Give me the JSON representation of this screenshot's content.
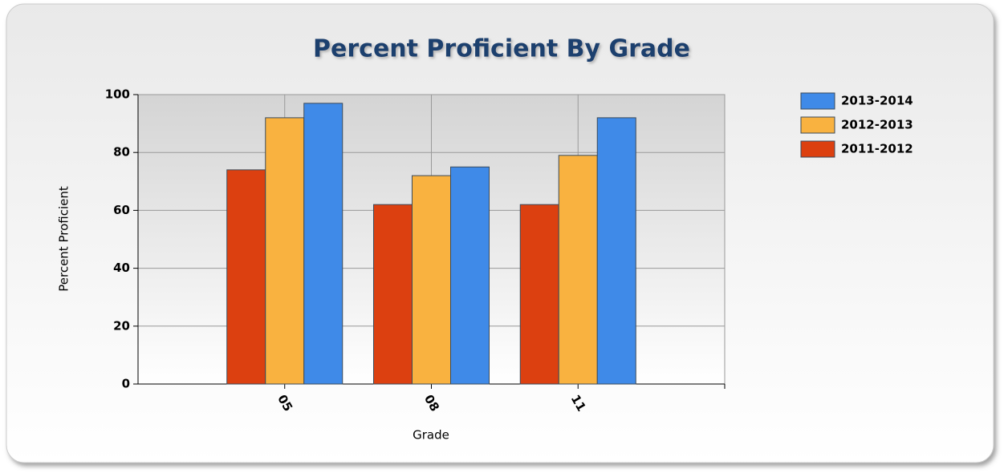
{
  "chart_data": {
    "type": "bar",
    "title": "Percent Proficient By Grade",
    "x_label": "Grade",
    "y_label": "Percent Proficient",
    "categories": [
      "05",
      "08",
      "11"
    ],
    "series": [
      {
        "name": "2011-2012",
        "color": "#dc4010",
        "values": [
          74,
          62,
          62
        ]
      },
      {
        "name": "2012-2013",
        "color": "#f9b240",
        "values": [
          92,
          72,
          79
        ]
      },
      {
        "name": "2013-2014",
        "color": "#3f8ae8",
        "values": [
          97,
          75,
          92
        ]
      }
    ],
    "ylim": [
      0,
      100
    ],
    "yticks": [
      0,
      20,
      40,
      60,
      80,
      100
    ],
    "grid": true,
    "legend": "right"
  }
}
